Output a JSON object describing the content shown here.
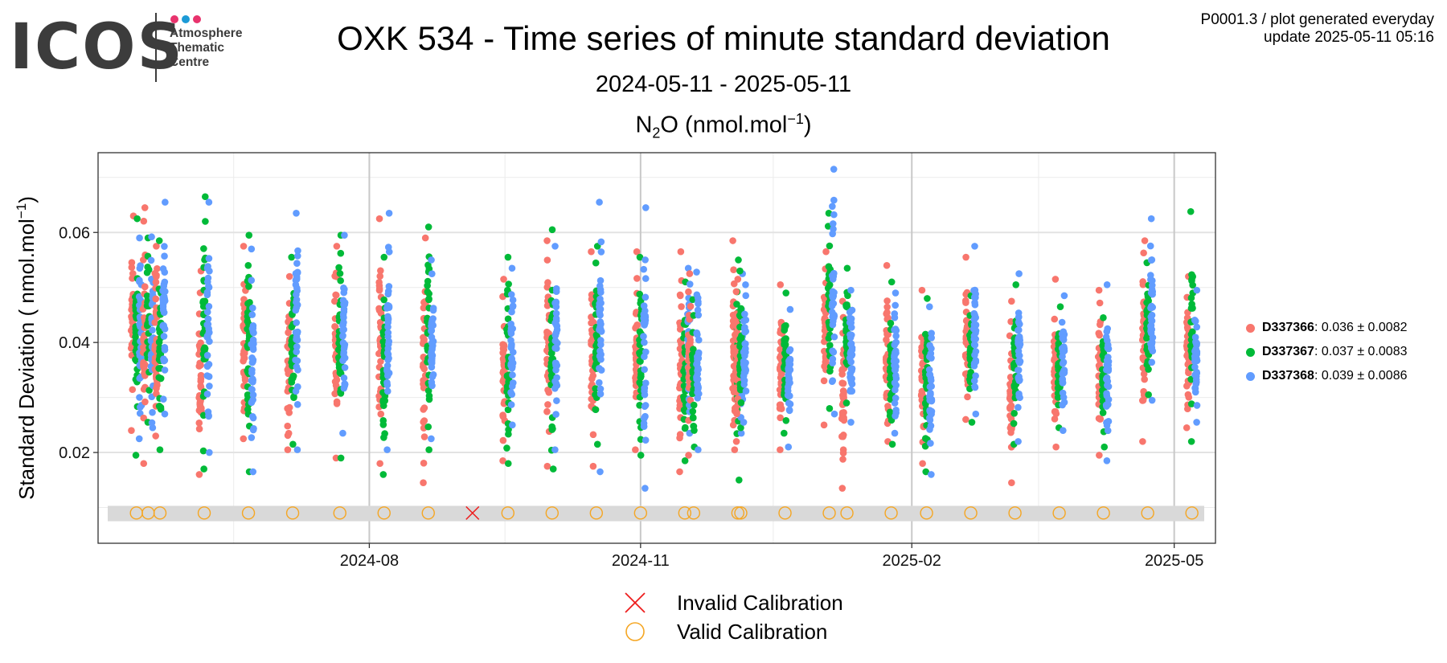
{
  "header": {
    "logo_word": "ICOS",
    "logo_lines": [
      "Atmosphere",
      "Thematic",
      "Centre"
    ],
    "logo_dot_colors": [
      "#e8336d",
      "#1c9ad6",
      "#e8336d"
    ],
    "meta_line1": "P0001.3 / plot generated everyday",
    "meta_line2": "update  2025-05-11 05:16",
    "title": "OXK 534 - Time series of minute standard deviation",
    "subtitle": "2024-05-11 - 2025-05-11",
    "panel_species": "N",
    "panel_species_sub": "2",
    "panel_species_rest": "O (nmol.mol",
    "panel_unit_sup": "−1",
    "panel_unit_close": ")"
  },
  "legend": [
    {
      "name": "D337366",
      "stats": ": 0.036 ± 0.0082",
      "color": "#f8766d"
    },
    {
      "name": "D337367",
      "stats": ": 0.037 ± 0.0083",
      "color": "#00ba38"
    },
    {
      "name": "D337368",
      "stats": ": 0.039 ± 0.0086",
      "color": "#619cff"
    }
  ],
  "calibration_legend": [
    {
      "label": "Invalid Calibration",
      "symbol": "cross",
      "color": "#ee1c1c"
    },
    {
      "label": "Valid Calibration",
      "symbol": "circle",
      "color": "#f5a623"
    }
  ],
  "chart_data": {
    "type": "scatter",
    "ylabel": "Standard Deviation ( nmol.mol",
    "ylabel_sup": "−1",
    "ylabel_close": ")",
    "x_range": [
      "2024-05-11",
      "2025-05-11"
    ],
    "ylim": [
      0.0035,
      0.0745
    ],
    "y_ticks": [
      0.02,
      0.04,
      0.06
    ],
    "y_tick_labels": [
      "0.02",
      "0.04",
      "0.06"
    ],
    "x_ticks": [
      "2024-08-01",
      "2024-11-01",
      "2025-02-01",
      "2025-05-01"
    ],
    "x_tick_labels": [
      "2024-08",
      "2024-11",
      "2025-02",
      "2025-05"
    ],
    "grid": true,
    "legend_position": "right",
    "calibration_band": [
      0.0075,
      0.0103
    ],
    "calibration_y": 0.009,
    "series": [
      {
        "name": "D337366",
        "color": "#f8766d"
      },
      {
        "name": "D337367",
        "color": "#00ba38"
      },
      {
        "name": "D337368",
        "color": "#619cff"
      }
    ],
    "sessions": [
      {
        "date": "2024-05-14",
        "ranges": [
          [
            0.024,
            0.063
          ],
          [
            0.0195,
            0.0625
          ],
          [
            0.0225,
            0.059
          ]
        ]
      },
      {
        "date": "2024-05-18",
        "ranges": [
          [
            0.018,
            0.0645
          ],
          [
            0.0255,
            0.059
          ],
          [
            0.0245,
            0.0592
          ]
        ]
      },
      {
        "date": "2024-05-22",
        "ranges": [
          [
            0.023,
            0.0575
          ],
          [
            0.0205,
            0.0585
          ],
          [
            0.027,
            0.0655
          ]
        ]
      },
      {
        "date": "2024-06-06",
        "ranges": [
          [
            0.016,
            0.053
          ],
          [
            0.017,
            0.0665
          ],
          [
            0.02,
            0.0655
          ]
        ]
      },
      {
        "date": "2024-06-21",
        "ranges": [
          [
            0.0225,
            0.0575
          ],
          [
            0.0165,
            0.0595
          ],
          [
            0.0165,
            0.057
          ]
        ]
      },
      {
        "date": "2024-07-06",
        "ranges": [
          [
            0.0205,
            0.052
          ],
          [
            0.0215,
            0.0555
          ],
          [
            0.0205,
            0.0635
          ]
        ]
      },
      {
        "date": "2024-07-22",
        "ranges": [
          [
            0.019,
            0.0575
          ],
          [
            0.019,
            0.0595
          ],
          [
            0.0235,
            0.0595
          ]
        ]
      },
      {
        "date": "2024-08-06",
        "ranges": [
          [
            0.018,
            0.0625
          ],
          [
            0.016,
            0.0555
          ],
          [
            0.0205,
            0.0635
          ]
        ]
      },
      {
        "date": "2024-08-21",
        "ranges": [
          [
            0.0145,
            0.059
          ],
          [
            0.0205,
            0.061
          ],
          [
            0.0225,
            0.055
          ]
        ]
      },
      {
        "date": "2024-09-17",
        "ranges": [
          [
            0.0185,
            0.0515
          ],
          [
            0.018,
            0.0555
          ],
          [
            0.025,
            0.0535
          ]
        ]
      },
      {
        "date": "2024-10-02",
        "ranges": [
          [
            0.0175,
            0.0585
          ],
          [
            0.017,
            0.0605
          ],
          [
            0.0205,
            0.0575
          ]
        ]
      },
      {
        "date": "2024-10-17",
        "ranges": [
          [
            0.0175,
            0.0565
          ],
          [
            0.0215,
            0.0575
          ],
          [
            0.0165,
            0.0655
          ]
        ]
      },
      {
        "date": "2024-11-01",
        "ranges": [
          [
            0.0205,
            0.0565
          ],
          [
            0.0195,
            0.0555
          ],
          [
            0.0135,
            0.0645
          ]
        ]
      },
      {
        "date": "2024-11-16",
        "ranges": [
          [
            0.0165,
            0.0565
          ],
          [
            0.0185,
            0.051
          ],
          [
            0.0235,
            0.0535
          ]
        ]
      },
      {
        "date": "2024-11-19",
        "ranges": [
          [
            0.0195,
            0.0525
          ],
          [
            0.021,
            0.0478
          ],
          [
            0.0205,
            0.0528
          ]
        ]
      },
      {
        "date": "2024-12-04",
        "ranges": [
          [
            0.0205,
            0.0585
          ],
          [
            0.015,
            0.055
          ],
          [
            0.0235,
            0.0525
          ]
        ]
      },
      {
        "date": "2024-12-05",
        "ranges": [
          [
            0.022,
            0.0515
          ],
          [
            0.0245,
            0.053
          ],
          [
            0.0255,
            0.0505
          ]
        ]
      },
      {
        "date": "2024-12-20",
        "ranges": [
          [
            0.0205,
            0.0505
          ],
          [
            0.0235,
            0.049
          ],
          [
            0.021,
            0.046
          ]
        ]
      },
      {
        "date": "2025-01-04",
        "ranges": [
          [
            0.025,
            0.0565
          ],
          [
            0.028,
            0.0635
          ],
          [
            0.027,
            0.0715
          ]
        ]
      },
      {
        "date": "2025-01-10",
        "ranges": [
          [
            0.0135,
            0.0475
          ],
          [
            0.029,
            0.0535
          ],
          [
            0.0255,
            0.0495
          ]
        ]
      },
      {
        "date": "2025-01-25",
        "ranges": [
          [
            0.022,
            0.054
          ],
          [
            0.0215,
            0.051
          ],
          [
            0.0235,
            0.049
          ]
        ]
      },
      {
        "date": "2025-02-06",
        "ranges": [
          [
            0.018,
            0.0495
          ],
          [
            0.0165,
            0.048
          ],
          [
            0.016,
            0.0465
          ]
        ]
      },
      {
        "date": "2025-02-21",
        "ranges": [
          [
            0.026,
            0.0555
          ],
          [
            0.0255,
            0.0485
          ],
          [
            0.027,
            0.0575
          ]
        ]
      },
      {
        "date": "2025-03-08",
        "ranges": [
          [
            0.0145,
            0.0475
          ],
          [
            0.0215,
            0.0505
          ],
          [
            0.022,
            0.0525
          ]
        ]
      },
      {
        "date": "2025-03-23",
        "ranges": [
          [
            0.021,
            0.0515
          ],
          [
            0.0245,
            0.0465
          ],
          [
            0.024,
            0.0485
          ]
        ]
      },
      {
        "date": "2025-04-07",
        "ranges": [
          [
            0.0195,
            0.0495
          ],
          [
            0.021,
            0.0445
          ],
          [
            0.0185,
            0.0505
          ]
        ]
      },
      {
        "date": "2025-04-22",
        "ranges": [
          [
            0.022,
            0.0585
          ],
          [
            0.0305,
            0.0545
          ],
          [
            0.0295,
            0.0625
          ]
        ]
      },
      {
        "date": "2025-05-07",
        "ranges": [
          [
            0.0245,
            0.052
          ],
          [
            0.022,
            0.0638
          ],
          [
            0.0255,
            0.0495
          ]
        ]
      }
    ],
    "calibrations": [
      {
        "date": "2024-05-14",
        "status": "valid"
      },
      {
        "date": "2024-05-18",
        "status": "valid"
      },
      {
        "date": "2024-05-22",
        "status": "valid"
      },
      {
        "date": "2024-06-06",
        "status": "valid"
      },
      {
        "date": "2024-06-21",
        "status": "valid"
      },
      {
        "date": "2024-07-06",
        "status": "valid"
      },
      {
        "date": "2024-07-22",
        "status": "valid"
      },
      {
        "date": "2024-08-06",
        "status": "valid"
      },
      {
        "date": "2024-08-21",
        "status": "valid"
      },
      {
        "date": "2024-09-05",
        "status": "invalid"
      },
      {
        "date": "2024-09-17",
        "status": "valid"
      },
      {
        "date": "2024-10-02",
        "status": "valid"
      },
      {
        "date": "2024-10-17",
        "status": "valid"
      },
      {
        "date": "2024-11-01",
        "status": "valid"
      },
      {
        "date": "2024-11-16",
        "status": "valid"
      },
      {
        "date": "2024-11-19",
        "status": "valid"
      },
      {
        "date": "2024-12-04",
        "status": "valid"
      },
      {
        "date": "2024-12-05",
        "status": "valid"
      },
      {
        "date": "2024-12-20",
        "status": "valid"
      },
      {
        "date": "2025-01-04",
        "status": "valid"
      },
      {
        "date": "2025-01-10",
        "status": "valid"
      },
      {
        "date": "2025-01-25",
        "status": "valid"
      },
      {
        "date": "2025-02-06",
        "status": "valid"
      },
      {
        "date": "2025-02-21",
        "status": "valid"
      },
      {
        "date": "2025-03-08",
        "status": "valid"
      },
      {
        "date": "2025-03-23",
        "status": "valid"
      },
      {
        "date": "2025-04-07",
        "status": "valid"
      },
      {
        "date": "2025-04-22",
        "status": "valid"
      },
      {
        "date": "2025-05-07",
        "status": "valid"
      }
    ]
  }
}
